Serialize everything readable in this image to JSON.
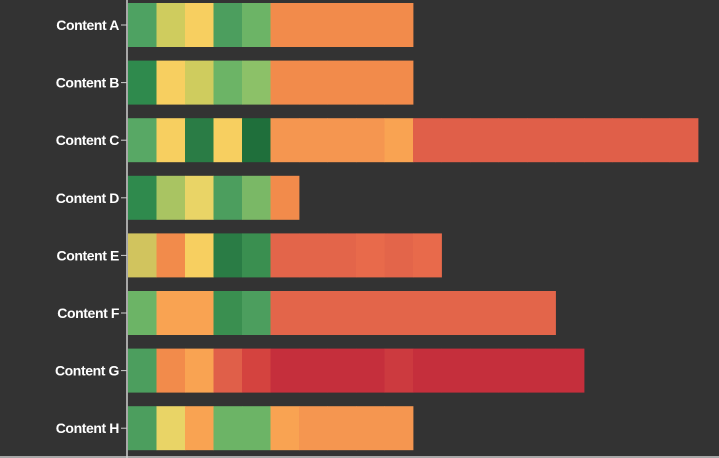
{
  "chart_data": {
    "type": "bar",
    "orientation": "horizontal",
    "stacked": true,
    "segment_unit": 1,
    "categories": [
      "Content A",
      "Content B",
      "Content C",
      "Content D",
      "Content E",
      "Content F",
      "Content G",
      "Content H"
    ],
    "segments": [
      [
        "#4ea262",
        "#cfcc5e",
        "#f7cf60",
        "#4c9e5e",
        "#6cb466",
        "#f28b4b",
        "#f28b4b",
        "#f28b4b",
        "#f28b4b",
        "#f28b4b"
      ],
      [
        "#2f8a4d",
        "#f7cf60",
        "#cfcc5e",
        "#6cb466",
        "#8cc168",
        "#f28b4b",
        "#f28b4b",
        "#f28b4b",
        "#f28b4b",
        "#f28b4b"
      ],
      [
        "#58a865",
        "#f7cf60",
        "#2a7c45",
        "#f7cf60",
        "#1f6f3b",
        "#f59650",
        "#f59650",
        "#f59650",
        "#f59650",
        "#f9a352",
        "#e05f49",
        "#e05f49",
        "#e05f49",
        "#e05f49",
        "#e05f49",
        "#e05f49",
        "#e05f49",
        "#e05f49",
        "#e05f49",
        "#e05f49"
      ],
      [
        "#2f8a4d",
        "#a9c462",
        "#e9d466",
        "#4c9e5e",
        "#7ab866",
        "#f28b4b"
      ],
      [
        "#d1c45e",
        "#f28b4b",
        "#f7cf60",
        "#2a7c45",
        "#3a8f50",
        "#e3654a",
        "#e3654a",
        "#e3654a",
        "#e86a4b",
        "#e3654a",
        "#e86a4b"
      ],
      [
        "#6cb466",
        "#f9a352",
        "#f9a352",
        "#3a8f50",
        "#4c9e5e",
        "#e3654a",
        "#e3654a",
        "#e3654a",
        "#e3654a",
        "#e3654a",
        "#e3654a",
        "#e3654a",
        "#e3654a",
        "#e3654a",
        "#e3654a"
      ],
      [
        "#4c9e5e",
        "#f28b4b",
        "#f9a352",
        "#e05f49",
        "#d4433f",
        "#c52f3c",
        "#c52f3c",
        "#c52f3c",
        "#c52f3c",
        "#cc3a3f",
        "#c52f3c",
        "#c52f3c",
        "#c52f3c",
        "#c52f3c",
        "#c52f3c",
        "#c52f3c"
      ],
      [
        "#4c9e5e",
        "#e9d466",
        "#f9a352",
        "#6cb466",
        "#6cb466",
        "#f9a352",
        "#f59650",
        "#f59650",
        "#f59650",
        "#f59650"
      ]
    ],
    "title": "",
    "xlabel": "",
    "ylabel": ""
  },
  "colors": {
    "background": "#333333",
    "axis": "#cfcfcf",
    "label": "#ffffff"
  }
}
